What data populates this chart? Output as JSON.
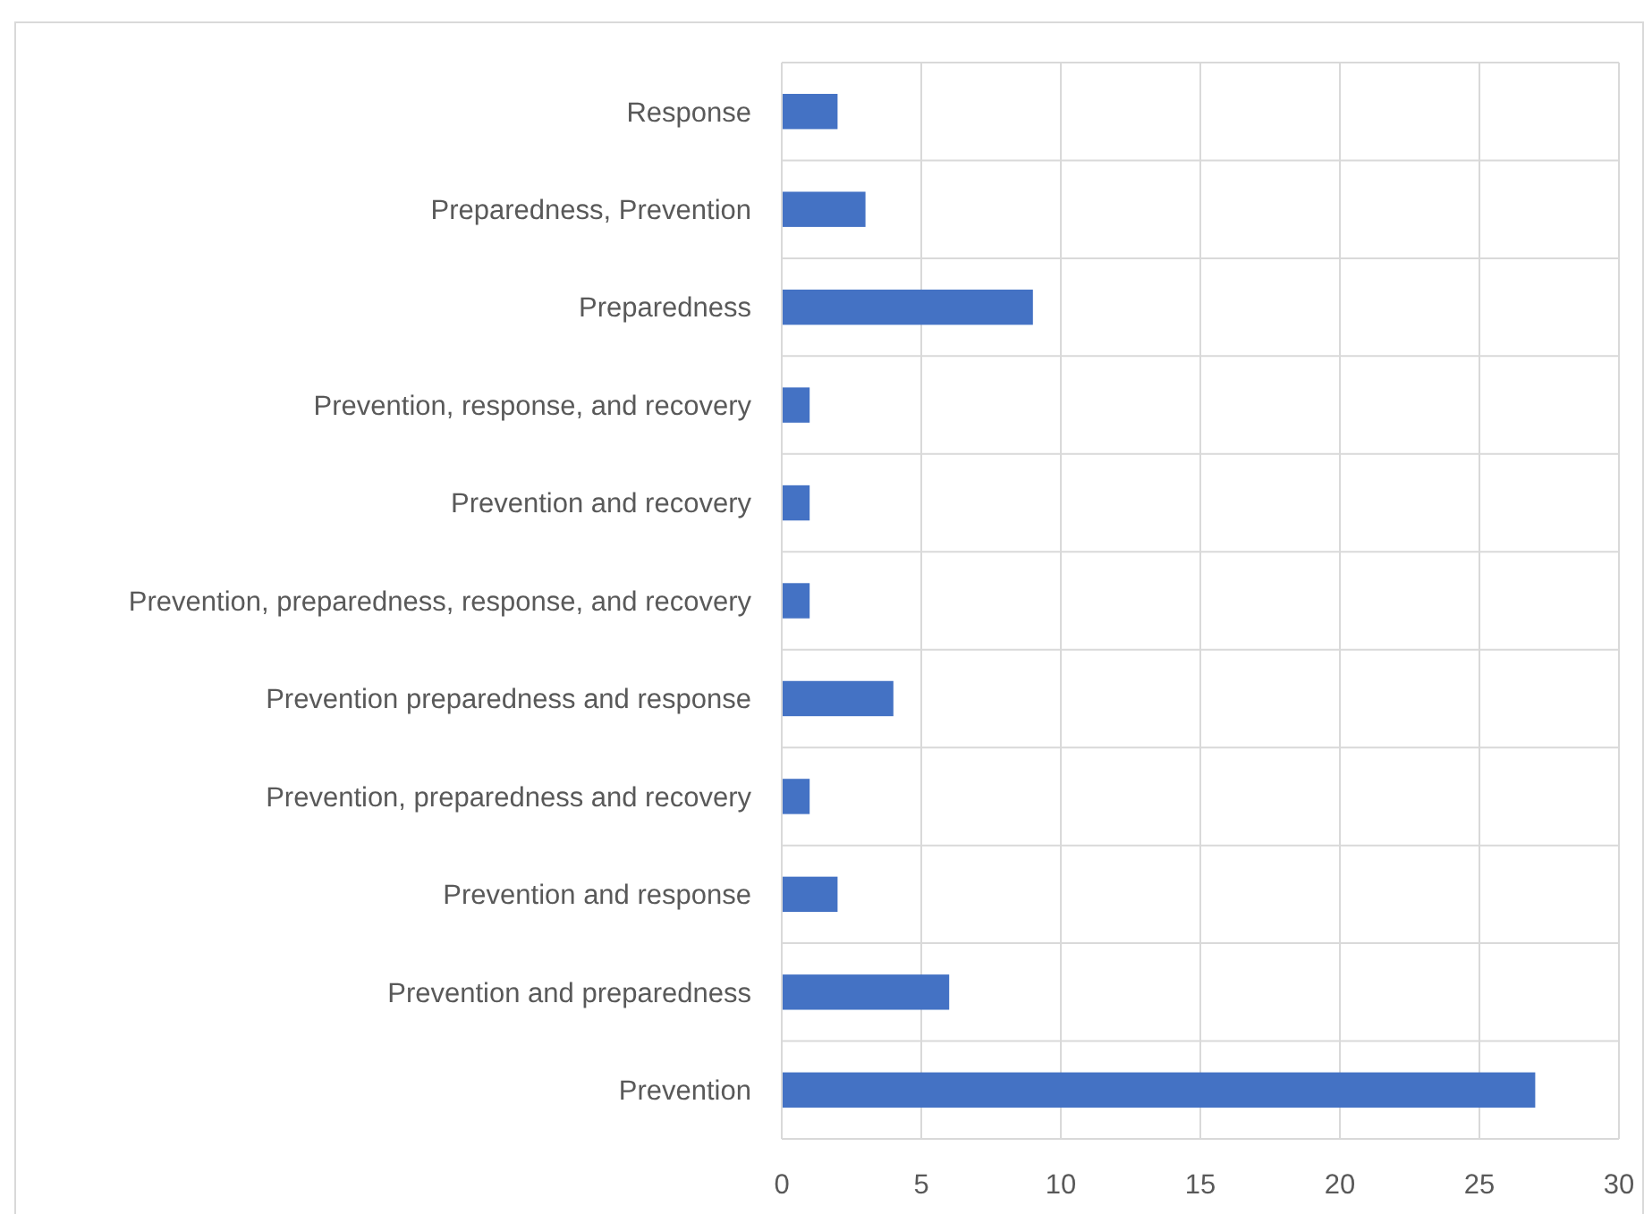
{
  "chart_data": {
    "type": "bar",
    "orientation": "horizontal",
    "categories": [
      "Response",
      "Preparedness, Prevention",
      "Preparedness",
      "Prevention, response, and recovery",
      "Prevention and recovery",
      "Prevention, preparedness, response, and recovery",
      "Prevention preparedness and response",
      "Prevention, preparedness and recovery",
      "Prevention and response",
      "Prevention and preparedness",
      "Prevention"
    ],
    "values": [
      2,
      3,
      9,
      1,
      1,
      1,
      4,
      1,
      2,
      6,
      27
    ],
    "color": "#4472c4",
    "xlim": [
      0,
      30
    ],
    "xticks": [
      0,
      5,
      10,
      15,
      20,
      25,
      30
    ],
    "grid": true
  }
}
